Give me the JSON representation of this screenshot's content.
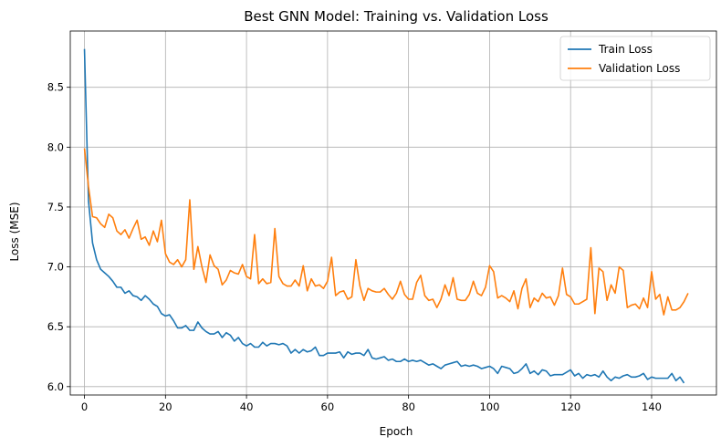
{
  "chart_data": {
    "type": "line",
    "title": "Best GNN Model: Training vs. Validation Loss",
    "xlabel": "Epoch",
    "ylabel": "Loss (MSE)",
    "xlim": [
      -3.5,
      156
    ],
    "ylim": [
      5.93,
      8.97
    ],
    "xticks": [
      0,
      20,
      40,
      60,
      80,
      100,
      120,
      140
    ],
    "yticks": [
      6.0,
      6.5,
      7.0,
      7.5,
      8.0,
      8.5
    ],
    "ytick_labels": [
      "6.0",
      "6.5",
      "7.0",
      "7.5",
      "8.0",
      "8.5"
    ],
    "grid": true,
    "legend_position": "top-right",
    "series": [
      {
        "name": "Train Loss",
        "color": "#1f77b4",
        "values": [
          8.82,
          7.55,
          7.2,
          7.06,
          6.98,
          6.95,
          6.92,
          6.88,
          6.83,
          6.83,
          6.78,
          6.8,
          6.76,
          6.75,
          6.72,
          6.76,
          6.73,
          6.69,
          6.67,
          6.61,
          6.59,
          6.6,
          6.55,
          6.49,
          6.49,
          6.51,
          6.47,
          6.47,
          6.54,
          6.49,
          6.46,
          6.44,
          6.44,
          6.46,
          6.41,
          6.45,
          6.43,
          6.38,
          6.41,
          6.36,
          6.34,
          6.36,
          6.33,
          6.33,
          6.37,
          6.34,
          6.36,
          6.36,
          6.35,
          6.36,
          6.34,
          6.28,
          6.31,
          6.28,
          6.31,
          6.29,
          6.3,
          6.33,
          6.26,
          6.26,
          6.28,
          6.28,
          6.28,
          6.29,
          6.24,
          6.29,
          6.27,
          6.28,
          6.28,
          6.26,
          6.31,
          6.24,
          6.23,
          6.24,
          6.25,
          6.22,
          6.23,
          6.21,
          6.21,
          6.23,
          6.21,
          6.22,
          6.21,
          6.22,
          6.2,
          6.18,
          6.19,
          6.17,
          6.15,
          6.18,
          6.19,
          6.2,
          6.21,
          6.17,
          6.18,
          6.17,
          6.18,
          6.17,
          6.15,
          6.16,
          6.17,
          6.15,
          6.11,
          6.17,
          6.16,
          6.15,
          6.11,
          6.12,
          6.15,
          6.19,
          6.11,
          6.13,
          6.1,
          6.14,
          6.13,
          6.09,
          6.1,
          6.1,
          6.1,
          6.12,
          6.14,
          6.09,
          6.11,
          6.07,
          6.1,
          6.09,
          6.1,
          6.08,
          6.13,
          6.08,
          6.05,
          6.08,
          6.07,
          6.09,
          6.1,
          6.08,
          6.08,
          6.09,
          6.11,
          6.06,
          6.08,
          6.07,
          6.07,
          6.07,
          6.07,
          6.11,
          6.05,
          6.08,
          6.03
        ]
      },
      {
        "name": "Validation Loss",
        "color": "#ff7f0e",
        "values": [
          7.99,
          7.67,
          7.42,
          7.41,
          7.36,
          7.33,
          7.44,
          7.41,
          7.3,
          7.27,
          7.31,
          7.24,
          7.32,
          7.39,
          7.23,
          7.25,
          7.18,
          7.3,
          7.21,
          7.39,
          7.11,
          7.04,
          7.02,
          7.06,
          7.0,
          7.06,
          7.56,
          6.98,
          7.17,
          7.0,
          6.87,
          7.1,
          7.01,
          6.98,
          6.85,
          6.89,
          6.97,
          6.95,
          6.94,
          7.02,
          6.92,
          6.9,
          7.27,
          6.86,
          6.9,
          6.86,
          6.87,
          7.32,
          6.92,
          6.86,
          6.84,
          6.84,
          6.89,
          6.84,
          7.01,
          6.8,
          6.9,
          6.84,
          6.85,
          6.82,
          6.88,
          7.08,
          6.76,
          6.79,
          6.8,
          6.73,
          6.75,
          7.06,
          6.84,
          6.72,
          6.82,
          6.8,
          6.79,
          6.79,
          6.82,
          6.77,
          6.73,
          6.78,
          6.88,
          6.77,
          6.73,
          6.73,
          6.87,
          6.93,
          6.76,
          6.72,
          6.73,
          6.66,
          6.73,
          6.85,
          6.76,
          6.91,
          6.73,
          6.72,
          6.72,
          6.77,
          6.88,
          6.78,
          6.76,
          6.83,
          7.01,
          6.96,
          6.74,
          6.76,
          6.74,
          6.71,
          6.8,
          6.65,
          6.82,
          6.9,
          6.66,
          6.74,
          6.71,
          6.78,
          6.74,
          6.75,
          6.68,
          6.76,
          6.99,
          6.77,
          6.75,
          6.69,
          6.69,
          6.71,
          6.73,
          7.16,
          6.61,
          6.99,
          6.96,
          6.72,
          6.85,
          6.78,
          7.0,
          6.97,
          6.66,
          6.68,
          6.69,
          6.65,
          6.74,
          6.66,
          6.96,
          6.73,
          6.77,
          6.6,
          6.75,
          6.64,
          6.64,
          6.66,
          6.71,
          6.78
        ]
      }
    ]
  }
}
